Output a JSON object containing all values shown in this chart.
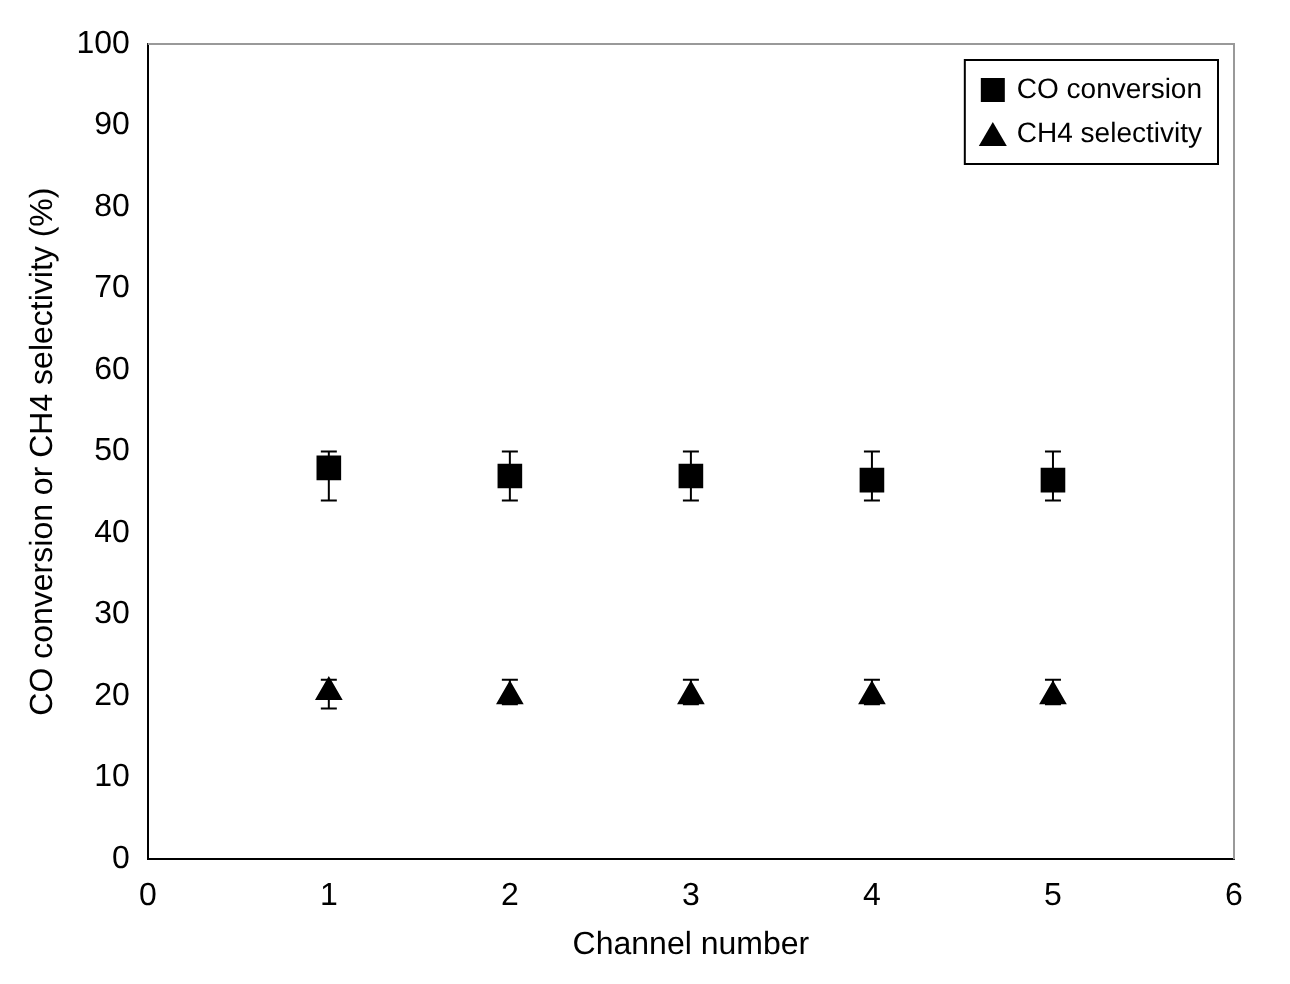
{
  "chart_data": {
    "type": "scatter",
    "xlabel": "Channel number",
    "ylabel": "CO conversion or CH4 selectivity (%)",
    "x": [
      1,
      2,
      3,
      4,
      5
    ],
    "series": [
      {
        "name": "CO conversion",
        "color": "#000000",
        "marker": "square",
        "values": [
          48,
          47,
          47,
          46.5,
          46.5
        ],
        "errors": [
          [
            44,
            50
          ],
          [
            44,
            50
          ],
          [
            44,
            50
          ],
          [
            44,
            50
          ],
          [
            44,
            50
          ]
        ]
      },
      {
        "name": "CH4 selectivity",
        "color": "#000000",
        "marker": "triangle",
        "values": [
          20.5,
          20,
          20,
          20,
          20
        ],
        "errors": [
          [
            18.5,
            22
          ],
          [
            19,
            22
          ],
          [
            19,
            22
          ],
          [
            19,
            22
          ],
          [
            19,
            22
          ]
        ]
      }
    ],
    "xlim": [
      0,
      6
    ],
    "xticks": [
      0,
      1,
      2,
      3,
      4,
      5,
      6
    ],
    "ylim": [
      0,
      100
    ],
    "yticks": [
      0,
      10,
      20,
      30,
      40,
      50,
      60,
      70,
      80,
      90,
      100
    ],
    "grid": false,
    "legend": "top right"
  }
}
